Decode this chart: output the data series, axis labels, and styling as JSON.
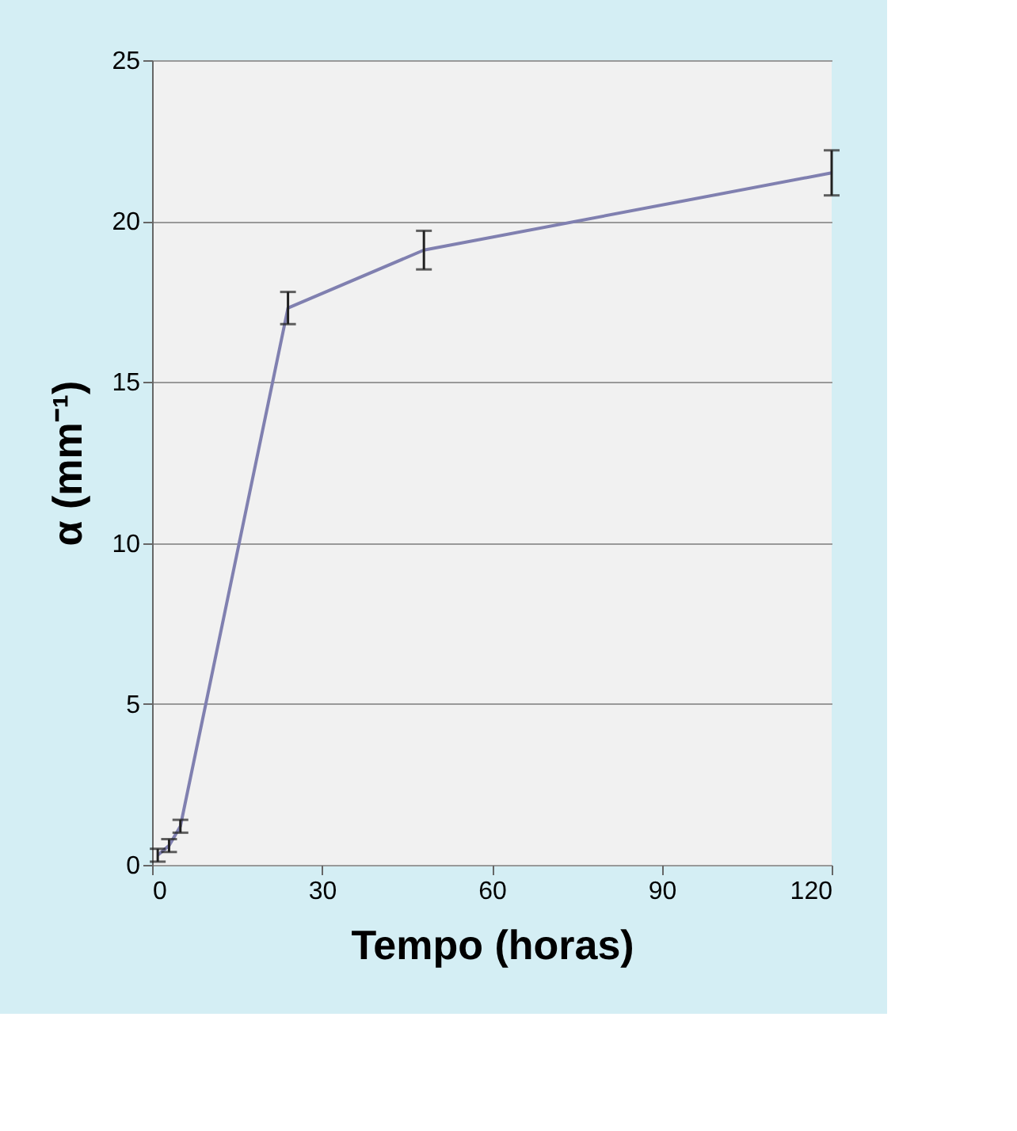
{
  "chart_data": {
    "type": "line",
    "xlabel": "Tempo (horas)",
    "ylabel": "α (mm⁻¹)",
    "x": [
      1,
      3,
      5,
      24,
      48,
      120
    ],
    "series": [
      {
        "color": "#8080b0",
        "values": [
          0.3,
          0.6,
          1.2,
          17.3,
          19.1,
          21.5
        ],
        "errors": [
          0.2,
          0.2,
          0.2,
          0.5,
          0.6,
          0.7
        ]
      }
    ],
    "xlim": [
      0,
      120
    ],
    "xticks": [
      0,
      30,
      60,
      90,
      120
    ],
    "ylim": [
      0,
      25
    ],
    "yticks": [
      0,
      5,
      10,
      15,
      20,
      25
    ],
    "grid": "y",
    "marker": "none",
    "line_style": "solid"
  }
}
